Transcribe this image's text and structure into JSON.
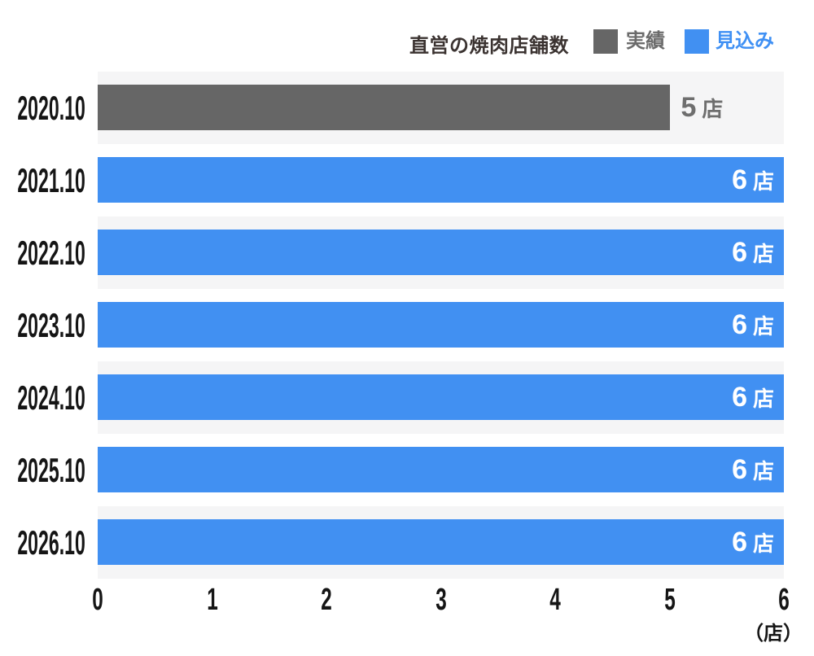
{
  "chart": {
    "title": "直営の焼肉店舗数",
    "unit_label": "（店）",
    "legend": [
      {
        "label": "実績",
        "color": "#666666",
        "text_color": "#6b6b6b"
      },
      {
        "label": "見込み",
        "color": "#4190f2",
        "text_color": "#3f90f4"
      }
    ],
    "x_ticks": [
      "0",
      "1",
      "2",
      "3",
      "4",
      "5",
      "6"
    ],
    "rows": [
      {
        "category": "2020.10",
        "value": 5,
        "num": "5",
        "unit": "店",
        "series": "実績",
        "color": "#666666",
        "inside": false,
        "striped": true
      },
      {
        "category": "2021.10",
        "value": 6,
        "num": "6",
        "unit": "店",
        "series": "見込み",
        "color": "#4190f2",
        "inside": true,
        "striped": false
      },
      {
        "category": "2022.10",
        "value": 6,
        "num": "6",
        "unit": "店",
        "series": "見込み",
        "color": "#4190f2",
        "inside": true,
        "striped": true
      },
      {
        "category": "2023.10",
        "value": 6,
        "num": "6",
        "unit": "店",
        "series": "見込み",
        "color": "#4190f2",
        "inside": true,
        "striped": false
      },
      {
        "category": "2024.10",
        "value": 6,
        "num": "6",
        "unit": "店",
        "series": "見込み",
        "color": "#4190f2",
        "inside": true,
        "striped": true
      },
      {
        "category": "2025.10",
        "value": 6,
        "num": "6",
        "unit": "店",
        "series": "見込み",
        "color": "#4190f2",
        "inside": true,
        "striped": false
      },
      {
        "category": "2026.10",
        "value": 6,
        "num": "6",
        "unit": "店",
        "series": "見込み",
        "color": "#4190f2",
        "inside": true,
        "striped": true
      }
    ]
  },
  "chart_data": {
    "type": "bar",
    "orientation": "horizontal",
    "title": "直営の焼肉店舗数",
    "categories": [
      "2020.10",
      "2021.10",
      "2022.10",
      "2023.10",
      "2024.10",
      "2025.10",
      "2026.10"
    ],
    "values": [
      5,
      6,
      6,
      6,
      6,
      6,
      6
    ],
    "data_labels": [
      "5 店",
      "6 店",
      "6 店",
      "6 店",
      "6 店",
      "6 店",
      "6 店"
    ],
    "series": [
      {
        "name": "実績",
        "color": "#666666",
        "values": [
          5,
          null,
          null,
          null,
          null,
          null,
          null
        ]
      },
      {
        "name": "見込み",
        "color": "#4190f2",
        "values": [
          null,
          6,
          6,
          6,
          6,
          6,
          6
        ]
      }
    ],
    "xlabel": "（店）",
    "ylabel": "",
    "xlim": [
      0,
      6
    ],
    "x_ticks": [
      0,
      1,
      2,
      3,
      4,
      5,
      6
    ],
    "grid": false,
    "row_stripes": true,
    "stripe_color": "#f5f5f6",
    "legend_position": "top"
  }
}
